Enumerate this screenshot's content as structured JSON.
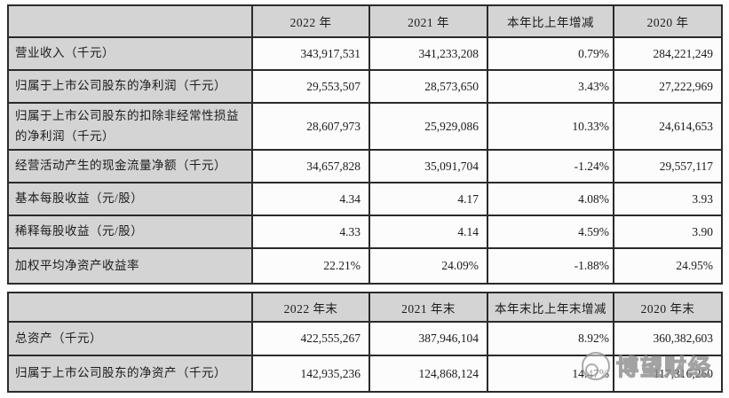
{
  "colors": {
    "cell_gray": "#d5d4d5",
    "cell_white": "#fcfcfc",
    "border": "#2a2a2a",
    "text": "#1b1b1b",
    "watermark_gray": "#8f8f8f"
  },
  "table1": {
    "columns": [
      "",
      "2022 年",
      "2021 年",
      "本年比上年增减",
      "2020 年"
    ],
    "rows": [
      {
        "label": "营业收入（千元）",
        "values": [
          "343,917,531",
          "341,233,208",
          "0.79%",
          "284,221,249"
        ]
      },
      {
        "label": "归属于上市公司股东的净利润（千元）",
        "values": [
          "29,553,507",
          "28,573,650",
          "3.43%",
          "27,222,969"
        ]
      },
      {
        "label": "归属于上市公司股东的扣除非经常性损益的净利润（千元）",
        "values": [
          "28,607,973",
          "25,929,086",
          "10.33%",
          "24,614,653"
        ]
      },
      {
        "label": "经营活动产生的现金流量净额（千元）",
        "values": [
          "34,657,828",
          "35,091,704",
          "-1.24%",
          "29,557,117"
        ]
      },
      {
        "label": "基本每股收益（元/股）",
        "values": [
          "4.34",
          "4.17",
          "4.08%",
          "3.93"
        ]
      },
      {
        "label": "稀释每股收益（元/股）",
        "values": [
          "4.33",
          "4.14",
          "4.59%",
          "3.90"
        ]
      },
      {
        "label": "加权平均净资产收益率",
        "values": [
          "22.21%",
          "24.09%",
          "-1.88%",
          "24.95%"
        ]
      }
    ]
  },
  "table2": {
    "columns": [
      "",
      "2022 年末",
      "2021 年末",
      "本年末比上年末增减",
      "2020 年末"
    ],
    "rows": [
      {
        "label": "总资产（千元）",
        "values": [
          "422,555,267",
          "387,946,104",
          "8.92%",
          "360,382,603"
        ]
      },
      {
        "label": "归属于上市公司股东的净资产（千元）",
        "values": [
          "142,935,236",
          "124,868,124",
          "14.47%",
          "117,316,260"
        ]
      }
    ]
  },
  "watermark": {
    "text": "博望财经",
    "logo": "circle-logo-icon"
  }
}
